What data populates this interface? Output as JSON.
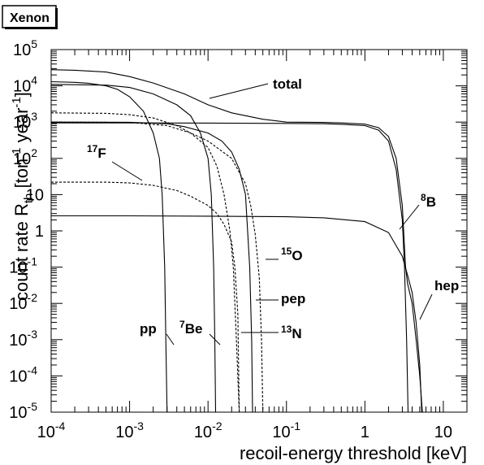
{
  "panel_title": "Xenon",
  "chart_data": {
    "type": "line",
    "title": "Xenon",
    "xlabel": "recoil-energy threshold [keV]",
    "ylabel": "count rate R_th [ton^-1 year^-1]",
    "xscale": "log",
    "yscale": "log",
    "xlim": [
      0.0001,
      20
    ],
    "ylim": [
      1e-05,
      100000
    ],
    "x_ticks": [
      {
        "value": 0.0001,
        "label": "10",
        "exp": "-4"
      },
      {
        "value": 0.001,
        "label": "10",
        "exp": "-3"
      },
      {
        "value": 0.01,
        "label": "10",
        "exp": "-2"
      },
      {
        "value": 0.1,
        "label": "10",
        "exp": "-1"
      },
      {
        "value": 1,
        "label": "1",
        "exp": ""
      },
      {
        "value": 10,
        "label": "10",
        "exp": ""
      }
    ],
    "y_ticks": [
      {
        "value": 1e-05,
        "label": "10",
        "exp": "-5"
      },
      {
        "value": 0.0001,
        "label": "10",
        "exp": "-4"
      },
      {
        "value": 0.001,
        "label": "10",
        "exp": "-3"
      },
      {
        "value": 0.01,
        "label": "10",
        "exp": "-2"
      },
      {
        "value": 0.1,
        "label": "10",
        "exp": "-1"
      },
      {
        "value": 1,
        "label": "1",
        "exp": ""
      },
      {
        "value": 10,
        "label": "10",
        "exp": ""
      },
      {
        "value": 100,
        "label": "10",
        "exp": "2"
      },
      {
        "value": 1000,
        "label": "10",
        "exp": "3"
      },
      {
        "value": 10000,
        "label": "10",
        "exp": "4"
      },
      {
        "value": 100000,
        "label": "10",
        "exp": "5"
      }
    ],
    "series": [
      {
        "key": "total",
        "dash": false,
        "points": [
          [
            0.0001,
            28000
          ],
          [
            0.0002,
            27000
          ],
          [
            0.0005,
            24000
          ],
          [
            0.001,
            18000
          ],
          [
            0.002,
            12000
          ],
          [
            0.005,
            6000
          ],
          [
            0.01,
            3000
          ],
          [
            0.02,
            1800
          ],
          [
            0.03,
            1500
          ],
          [
            0.05,
            1200
          ],
          [
            0.1,
            1000
          ],
          [
            0.3,
            980
          ],
          [
            0.5,
            950
          ],
          [
            1,
            880
          ],
          [
            1.5,
            700
          ],
          [
            2,
            400
          ],
          [
            2.5,
            100
          ],
          [
            3,
            5
          ],
          [
            3.3,
            0.1
          ],
          [
            3.5,
            0.035
          ],
          [
            4,
            0.01
          ],
          [
            4.5,
            0.001
          ],
          [
            5,
            0.0001
          ],
          [
            5.4,
            1e-05
          ]
        ]
      },
      {
        "key": "pp",
        "dash": false,
        "points": [
          [
            0.0001,
            13000
          ],
          [
            0.0002,
            12500
          ],
          [
            0.0003,
            11800
          ],
          [
            0.0005,
            10000
          ],
          [
            0.0007,
            8000
          ],
          [
            0.001,
            5000
          ],
          [
            0.0015,
            2000
          ],
          [
            0.002,
            500
          ],
          [
            0.0024,
            100
          ],
          [
            0.0026,
            10
          ],
          [
            0.0028,
            0.1
          ],
          [
            0.0029,
            0.001
          ],
          [
            0.003,
            1e-05
          ]
        ]
      },
      {
        "key": "7Be",
        "dash": false,
        "points": [
          [
            0.0001,
            11000
          ],
          [
            0.0005,
            10500
          ],
          [
            0.001,
            9000
          ],
          [
            0.002,
            6000
          ],
          [
            0.004,
            3000
          ],
          [
            0.006,
            1500
          ],
          [
            0.008,
            500
          ],
          [
            0.01,
            100
          ],
          [
            0.011,
            10
          ],
          [
            0.0118,
            0.1
          ],
          [
            0.0122,
            0.001
          ],
          [
            0.0125,
            1e-05
          ]
        ]
      },
      {
        "key": "8B",
        "dash": false,
        "points": [
          [
            0.0001,
            950
          ],
          [
            0.001,
            950
          ],
          [
            0.01,
            940
          ],
          [
            0.1,
            920
          ],
          [
            0.3,
            900
          ],
          [
            0.5,
            870
          ],
          [
            1,
            800
          ],
          [
            1.5,
            600
          ],
          [
            2,
            300
          ],
          [
            2.5,
            50
          ],
          [
            3,
            2
          ],
          [
            3.2,
            0.1
          ],
          [
            3.4,
            0.001
          ],
          [
            3.55,
            1e-05
          ]
        ]
      },
      {
        "key": "hep",
        "dash": false,
        "points": [
          [
            0.0001,
            2.6
          ],
          [
            0.001,
            2.6
          ],
          [
            0.01,
            2.55
          ],
          [
            0.1,
            2.45
          ],
          [
            0.3,
            2.3
          ],
          [
            1,
            1.8
          ],
          [
            2,
            0.9
          ],
          [
            3,
            0.2
          ],
          [
            3.5,
            0.06
          ],
          [
            4,
            0.02
          ],
          [
            4.5,
            0.003
          ],
          [
            5,
            0.0002
          ],
          [
            5.3,
            1e-05
          ]
        ]
      },
      {
        "key": "15O",
        "dash": false,
        "points": [
          [
            0.0001,
            1000
          ],
          [
            0.001,
            990
          ],
          [
            0.003,
            900
          ],
          [
            0.005,
            750
          ],
          [
            0.01,
            500
          ],
          [
            0.015,
            300
          ],
          [
            0.02,
            150
          ],
          [
            0.025,
            50
          ],
          [
            0.03,
            10
          ],
          [
            0.034,
            0.1
          ],
          [
            0.036,
            0.001
          ],
          [
            0.037,
            1e-05
          ]
        ]
      },
      {
        "key": "13N",
        "dash": true,
        "points": [
          [
            0.0001,
            1800
          ],
          [
            0.0005,
            1750
          ],
          [
            0.001,
            1600
          ],
          [
            0.002,
            1300
          ],
          [
            0.004,
            800
          ],
          [
            0.006,
            500
          ],
          [
            0.01,
            200
          ],
          [
            0.013,
            60
          ],
          [
            0.016,
            10
          ],
          [
            0.019,
            1
          ],
          [
            0.021,
            0.1
          ],
          [
            0.023,
            0.001
          ],
          [
            0.025,
            1e-05
          ]
        ]
      },
      {
        "key": "pep",
        "dash": true,
        "points": [
          [
            0.0001,
            1000
          ],
          [
            0.001,
            980
          ],
          [
            0.003,
            800
          ],
          [
            0.006,
            500
          ],
          [
            0.01,
            300
          ],
          [
            0.02,
            100
          ],
          [
            0.03,
            20
          ],
          [
            0.035,
            5
          ],
          [
            0.04,
            0.8
          ],
          [
            0.045,
            0.05
          ],
          [
            0.048,
            0.001
          ],
          [
            0.05,
            1e-05
          ]
        ]
      },
      {
        "key": "17F",
        "dash": true,
        "points": [
          [
            0.0001,
            22
          ],
          [
            0.0005,
            22
          ],
          [
            0.001,
            21
          ],
          [
            0.002,
            18
          ],
          [
            0.004,
            13
          ],
          [
            0.006,
            9
          ],
          [
            0.01,
            5
          ],
          [
            0.013,
            3
          ],
          [
            0.016,
            1.5
          ],
          [
            0.02,
            0.5
          ],
          [
            0.022,
            0.1
          ],
          [
            0.024,
            0.005
          ],
          [
            0.025,
            1e-05
          ]
        ]
      }
    ],
    "annotations": [
      {
        "key": "total",
        "text": "total",
        "sup": ""
      },
      {
        "key": "8B",
        "text": "B",
        "sup": "8"
      },
      {
        "key": "17F",
        "text": "F",
        "sup": "17"
      },
      {
        "key": "15O",
        "text": "O",
        "sup": "15"
      },
      {
        "key": "pep",
        "text": "pep",
        "sup": ""
      },
      {
        "key": "13N",
        "text": "N",
        "sup": "13"
      },
      {
        "key": "pp",
        "text": "pp",
        "sup": ""
      },
      {
        "key": "7Be",
        "text": "Be",
        "sup": "7"
      },
      {
        "key": "hep",
        "text": "hep",
        "sup": ""
      }
    ]
  }
}
